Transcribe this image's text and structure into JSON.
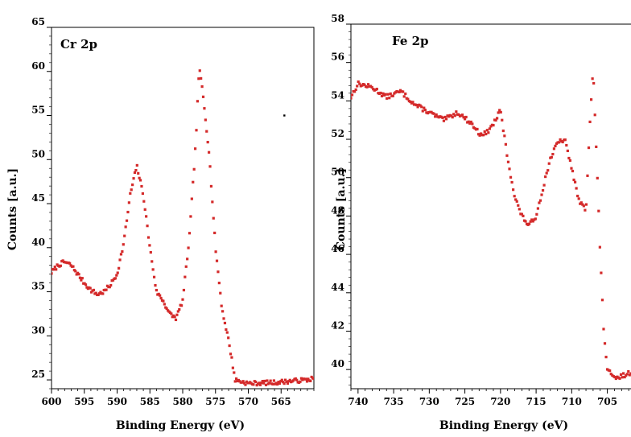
{
  "chart_data": [
    {
      "type": "scatter",
      "title": "Cr 2p",
      "xlabel": "Binding Energy (eV)",
      "ylabel": "Counts [a.u.]",
      "xlim": [
        600,
        560
      ],
      "ylim": [
        24,
        65
      ],
      "x_ticks": [
        600,
        595,
        590,
        585,
        580,
        575,
        570,
        565
      ],
      "y_ticks": [
        25,
        30,
        35,
        40,
        45,
        50,
        55,
        60,
        65
      ],
      "reversed_x": true,
      "grid": false,
      "marker_color": "#d42a2a",
      "stray_point": {
        "x": 564.5,
        "y": 55
      },
      "profile": [
        [
          600,
          37.2
        ],
        [
          599,
          38.0
        ],
        [
          598,
          38.4
        ],
        [
          597,
          38.0
        ],
        [
          596,
          37.0
        ],
        [
          595,
          36.0
        ],
        [
          594,
          35.2
        ],
        [
          593,
          34.7
        ],
        [
          592,
          35.0
        ],
        [
          591,
          35.8
        ],
        [
          590,
          37.0
        ],
        [
          589,
          40.5
        ],
        [
          588,
          46.0
        ],
        [
          587,
          49.3
        ],
        [
          586,
          46.0
        ],
        [
          585,
          40.0
        ],
        [
          584,
          35.0
        ],
        [
          583,
          34.0
        ],
        [
          582,
          32.5
        ],
        [
          581,
          32.0
        ],
        [
          580,
          34.0
        ],
        [
          579,
          41.0
        ],
        [
          578,
          52.0
        ],
        [
          577.5,
          60.4
        ],
        [
          577,
          58.0
        ],
        [
          576,
          51.0
        ],
        [
          575,
          40.0
        ],
        [
          574,
          33.0
        ],
        [
          573,
          29.5
        ],
        [
          572,
          25.0
        ],
        [
          570,
          24.6
        ],
        [
          566,
          24.7
        ],
        [
          563,
          24.9
        ],
        [
          561,
          25.0
        ],
        [
          560,
          25.2
        ]
      ]
    },
    {
      "type": "scatter",
      "title": "Fe 2p",
      "xlabel": "Binding Energy (eV)",
      "ylabel": "Counts [a.u.]",
      "xlim": [
        741,
        701
      ],
      "ylim": [
        39,
        58
      ],
      "x_ticks": [
        740,
        735,
        730,
        725,
        720,
        715,
        710,
        705
      ],
      "y_ticks": [
        40,
        42,
        44,
        46,
        48,
        50,
        52,
        54,
        56,
        58
      ],
      "reversed_x": true,
      "grid": false,
      "marker_color": "#d42a2a",
      "profile": [
        [
          741,
          54.2
        ],
        [
          740,
          54.9
        ],
        [
          738,
          54.7
        ],
        [
          736,
          54.2
        ],
        [
          734,
          54.5
        ],
        [
          732,
          53.8
        ],
        [
          730,
          53.4
        ],
        [
          728,
          53.0
        ],
        [
          726,
          53.4
        ],
        [
          724,
          52.8
        ],
        [
          723,
          52.3
        ],
        [
          722,
          52.3
        ],
        [
          721,
          52.8
        ],
        [
          720,
          53.5
        ],
        [
          719,
          51.0
        ],
        [
          718,
          49.0
        ],
        [
          717,
          48.0
        ],
        [
          716,
          47.5
        ],
        [
          715,
          48.0
        ],
        [
          714,
          49.5
        ],
        [
          713,
          51.0
        ],
        [
          712,
          51.8
        ],
        [
          711,
          52.0
        ],
        [
          710,
          50.5
        ],
        [
          709,
          48.8
        ],
        [
          708,
          48.3
        ],
        [
          707.5,
          52.6
        ],
        [
          707,
          55.7
        ],
        [
          706.5,
          51.0
        ],
        [
          706,
          46.0
        ],
        [
          705.5,
          42.0
        ],
        [
          705,
          40.0
        ],
        [
          704,
          39.5
        ],
        [
          702,
          39.8
        ],
        [
          701,
          40.0
        ]
      ]
    }
  ]
}
